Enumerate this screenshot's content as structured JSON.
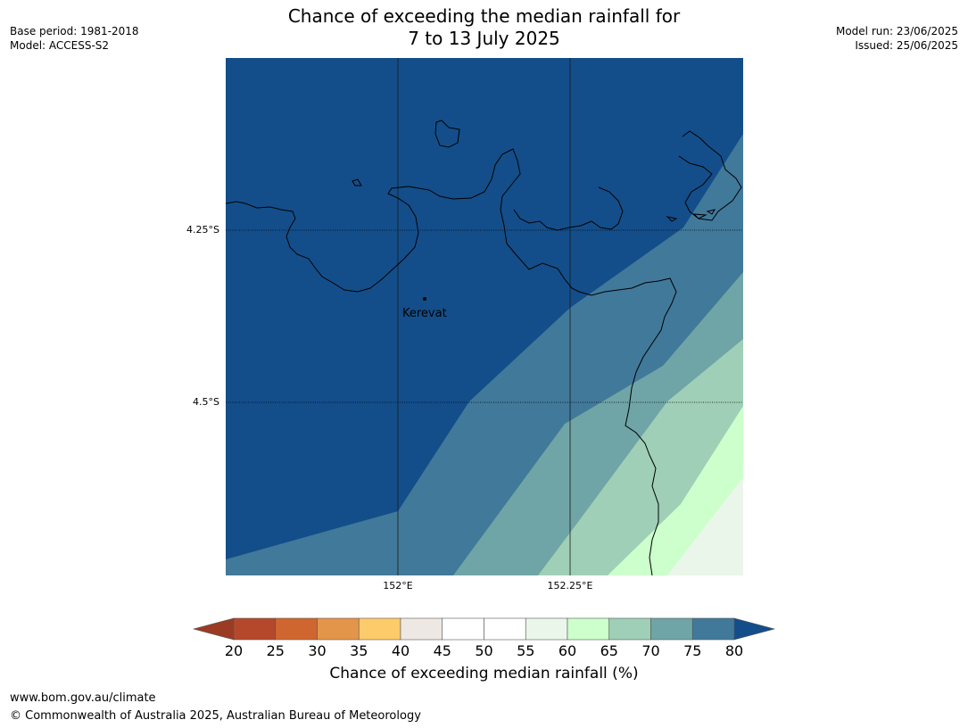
{
  "title_line1": "Chance of exceeding the median rainfall for",
  "title_line2": "7 to 13 July 2025",
  "base_period": "Base period: 1981-2018",
  "model": "Model: ACCESS-S2",
  "model_run": "Model run: 23/06/2025",
  "issued": "Issued: 25/06/2025",
  "lat_labels": [
    "4.25°S",
    "4.5°S"
  ],
  "lon_labels": [
    "152°E",
    "152.25°E"
  ],
  "place": "Kerevat",
  "colorbar": {
    "ticks": [
      "20",
      "25",
      "30",
      "35",
      "40",
      "45",
      "50",
      "55",
      "60",
      "65",
      "70",
      "75",
      "80"
    ],
    "colors": [
      "#9c3b24",
      "#b5482b",
      "#d0662f",
      "#e3954a",
      "#fecb6a",
      "#ede8e4",
      "#ffffff",
      "#ffffff",
      "#ebf6eb",
      "#ccffcc",
      "#9fcfb7",
      "#6fa5a6",
      "#41799a",
      "#134e8a"
    ],
    "label": "Chance of exceeding median rainfall (%)"
  },
  "footer_url": "www.bom.gov.au/climate",
  "footer_copyright": "© Commonwealth of Australia 2025, Australian Bureau of Meteorology"
}
